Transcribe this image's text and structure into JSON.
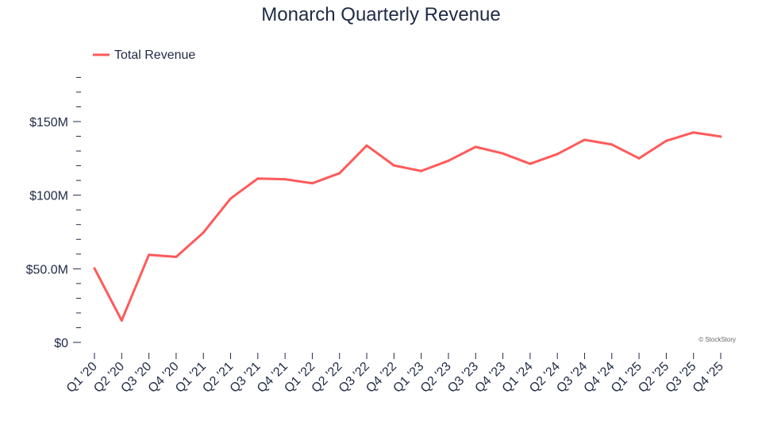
{
  "chart_data": {
    "type": "line",
    "title": "Monarch Quarterly Revenue",
    "xlabel": "",
    "ylabel": "",
    "ylim": [
      0,
      180
    ],
    "y_unit": "$M",
    "yticks": [
      {
        "value": 0,
        "label": "$0"
      },
      {
        "value": 50,
        "label": "$50.0M"
      },
      {
        "value": 100,
        "label": "$100M"
      },
      {
        "value": 150,
        "label": "$150M"
      }
    ],
    "y_minor_step": 10,
    "grid": false,
    "legend_position": "top-left",
    "categories": [
      "Q1 '20",
      "Q2 '20",
      "Q3 '20",
      "Q4 '20",
      "Q1 '21",
      "Q2 '21",
      "Q3 '21",
      "Q4 '21",
      "Q1 '22",
      "Q2 '22",
      "Q3 '22",
      "Q4 '22",
      "Q1 '23",
      "Q2 '23",
      "Q3 '23",
      "Q4 '23",
      "Q1 '24",
      "Q2 '24",
      "Q3 '24",
      "Q4 '24",
      "Q1 '25",
      "Q2 '25",
      "Q3 '25",
      "Q4 '25"
    ],
    "series": [
      {
        "name": "Total Revenue",
        "color": "#ff5a5a",
        "values": [
          50.3,
          14.9,
          59.5,
          58.1,
          74.6,
          97.7,
          111.3,
          110.8,
          108.1,
          114.9,
          133.7,
          120.2,
          116.4,
          123.4,
          132.8,
          128.3,
          121.3,
          127.9,
          137.6,
          134.4,
          125.0,
          136.9,
          142.6,
          139.8
        ]
      }
    ],
    "credit": "© StockStory"
  }
}
